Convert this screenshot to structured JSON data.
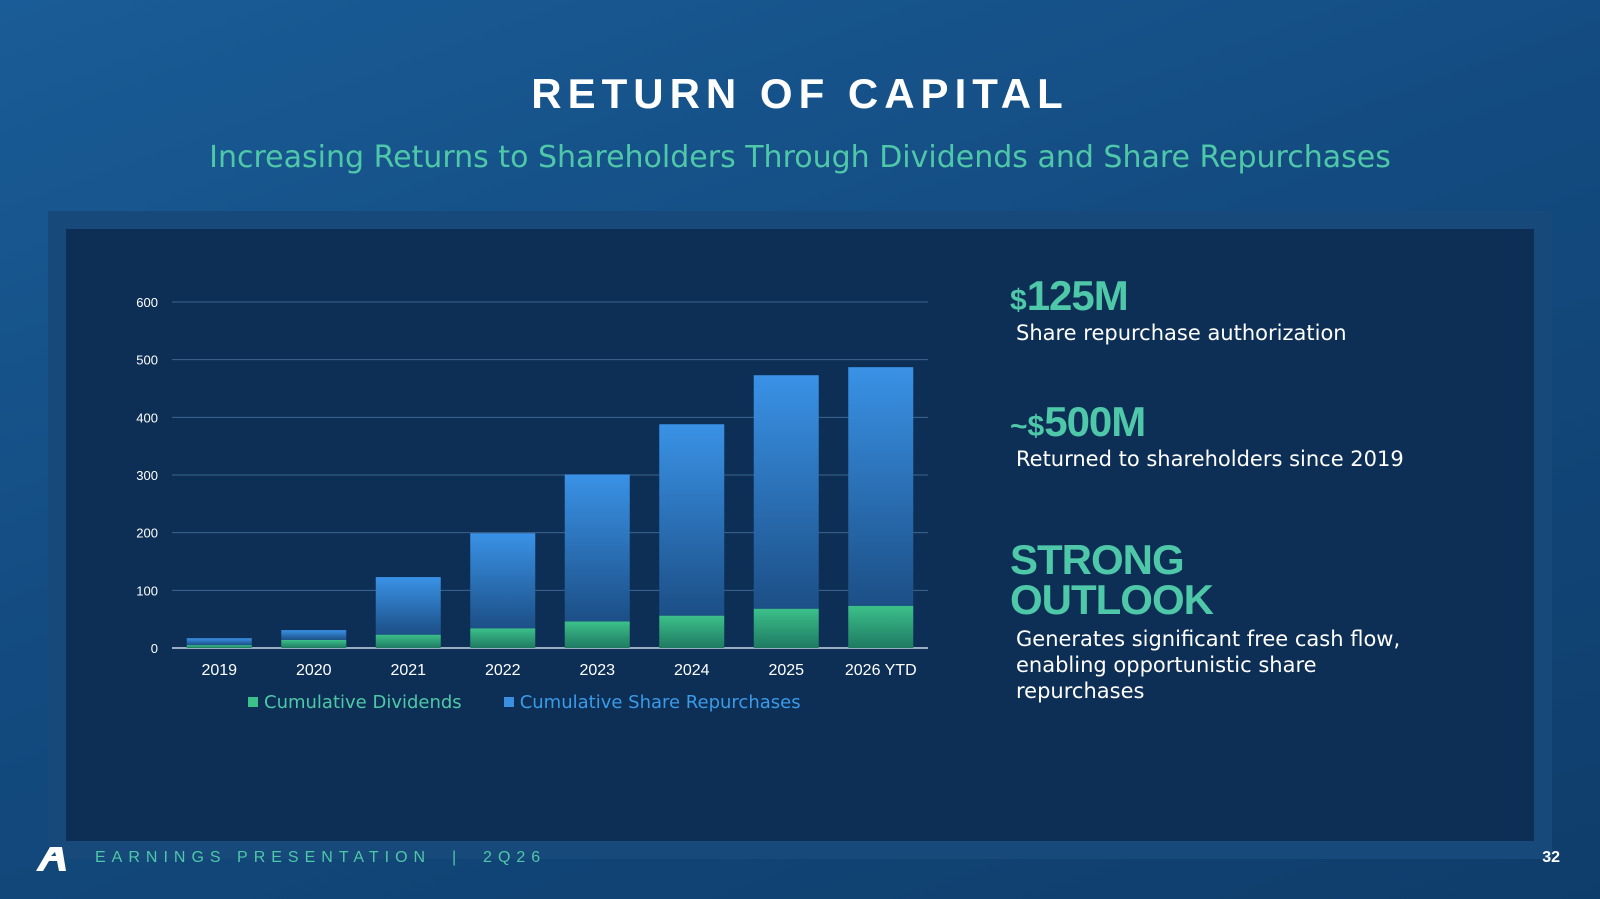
{
  "slide": {
    "title": "RETURN OF CAPITAL",
    "subtitle": "Increasing Returns to Shareholders Through Dividends and Share Repurchases"
  },
  "chart_data": {
    "type": "bar",
    "stacked": true,
    "categories": [
      "2019",
      "2020",
      "2021",
      "2022",
      "2023",
      "2024",
      "2025",
      "2026 YTD"
    ],
    "series": [
      {
        "name": "Cumulative Dividends",
        "values": [
          5,
          14,
          23,
          34,
          46,
          56,
          68,
          73
        ],
        "color": "#3cc08a"
      },
      {
        "name": "Cumulative Share Repurchases",
        "values": [
          12,
          17,
          100,
          165,
          255,
          332,
          405,
          414
        ],
        "color": "#3a8fe0"
      }
    ],
    "yticks": [
      0,
      100,
      200,
      300,
      400,
      500,
      600
    ],
    "ylim": [
      0,
      600
    ],
    "grid": true,
    "legend_position": "bottom"
  },
  "stats": {
    "authorization": {
      "prefix": "$",
      "value": "125M",
      "description": "Share repurchase authorization"
    },
    "returned": {
      "prefix": "~$",
      "value": "500M",
      "description": "Returned to shareholders since 2019"
    },
    "outlook": {
      "line1": "STRONG",
      "line2": "OUTLOOK",
      "description": "Generates significant free cash flow, enabling opportunistic share repurchases"
    }
  },
  "footer": {
    "text": "EARNINGS PRESENTATION  |  2Q26",
    "page_number": "32",
    "logo_icon": "company-a-logo-icon"
  },
  "colors": {
    "accent": "#4ec8a8",
    "dividends": "#3cc08a",
    "repurchases": "#3a8fe0",
    "background": "#134b80"
  }
}
